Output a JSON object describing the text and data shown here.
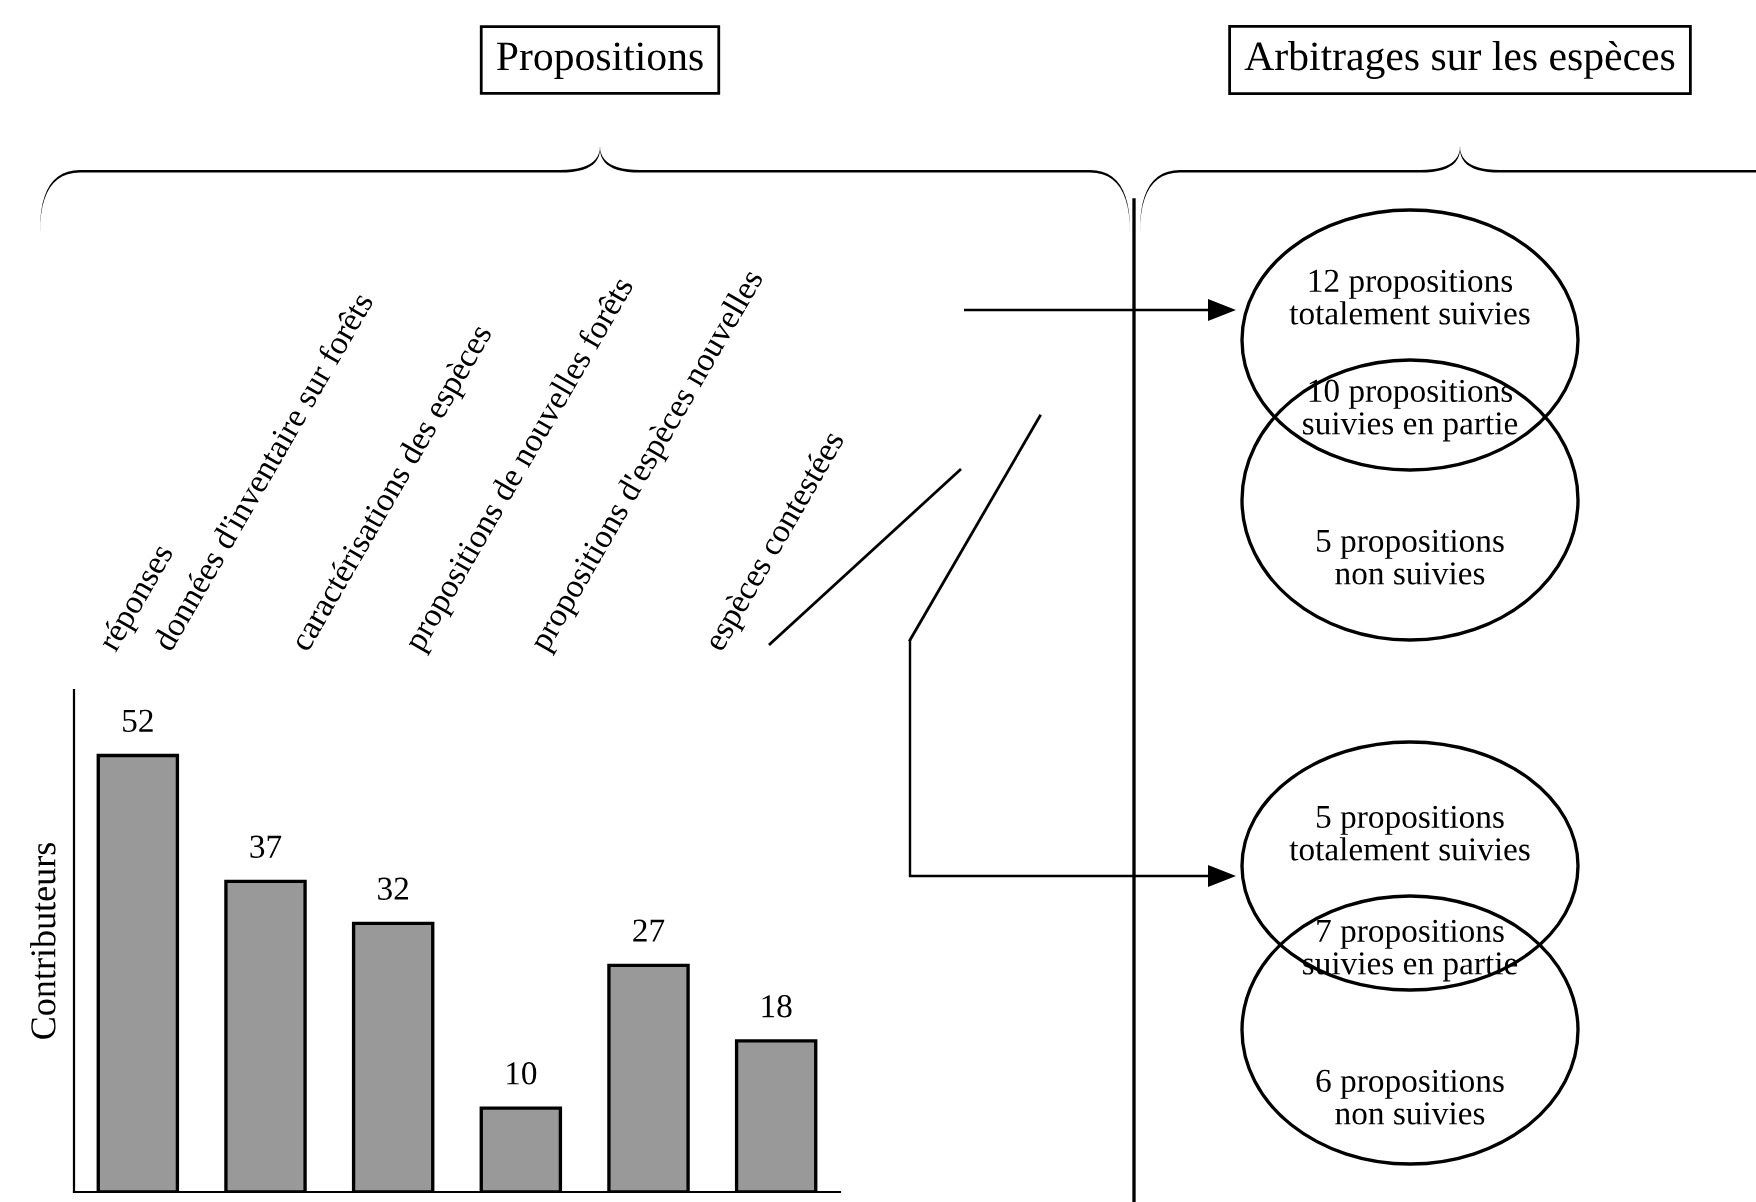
{
  "chart_data": [
    {
      "type": "bar",
      "title": "Propositions",
      "ylabel": "Contributeurs",
      "categories": [
        "réponses",
        "données d'inventaire sur forêts",
        "caractérisations des espèces",
        "propositions de nouvelles forêts",
        "propositions d'espèces nouvelles",
        "espèces contestées"
      ],
      "values": [
        52,
        37,
        32,
        10,
        27,
        18
      ],
      "color": "#999999",
      "data_labels": true,
      "tick_labels": "x",
      "grid": false,
      "legend": false
    },
    {
      "type": "other",
      "title": "Arbitrages sur les espèces",
      "annotations": [
        "12 propositions\ntotalement suivies",
        "10 propositions\nsuivies en partie",
        "5 propositions\nnon suivies",
        "5 propositions\ntotalement suivies",
        "7 propositions\nsuivies en partie",
        "6 propositions\nnon suivies"
      ]
    }
  ]
}
